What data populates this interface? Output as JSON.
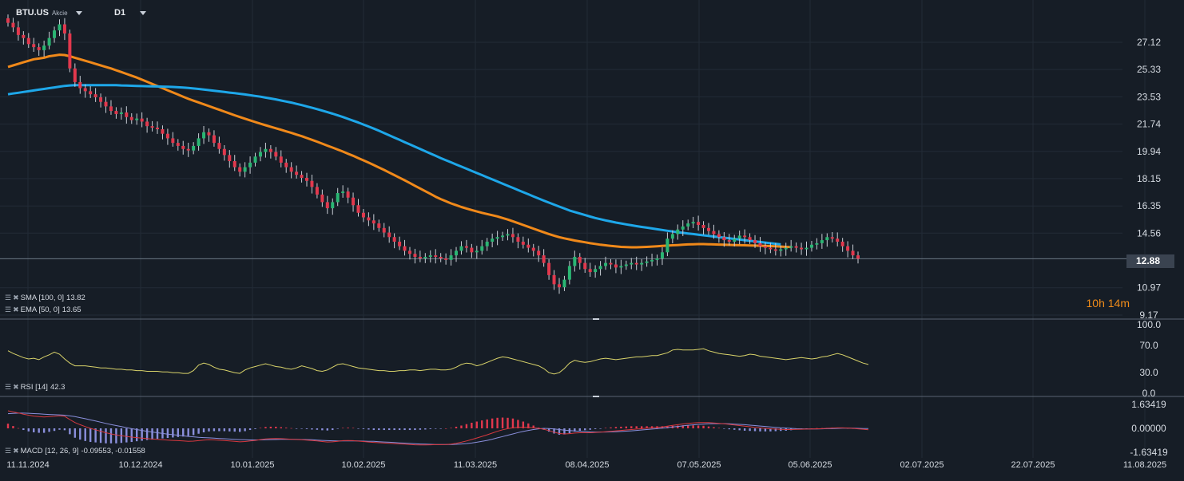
{
  "header": {
    "symbol": "BTU.US",
    "asset_type": "Akcie",
    "timeframe": "D1"
  },
  "indicators": {
    "sma": {
      "label": "SMA [100, 0]",
      "value": "13.82",
      "color": "#1ea7e9"
    },
    "ema": {
      "label": "EMA [50, 0]",
      "value": "13.65",
      "color": "#f0891a"
    },
    "rsi": {
      "label": "RSI [14]",
      "value": "42.3",
      "color": "#d9d36a"
    },
    "macd": {
      "label": "MACD [12, 26, 9]",
      "value": "-0.09553, -0.01558",
      "color_main": "#d7383f",
      "color_signal": "#8a8fdc"
    }
  },
  "countdown": "10h 14m",
  "chart_data": [
    {
      "type": "candlestick",
      "panel": "price",
      "x_ticks": [
        "11.11.2024",
        "10.12.2024",
        "10.01.2025",
        "10.02.2025",
        "11.03.2025",
        "08.04.2025",
        "07.05.2025",
        "05.06.2025",
        "02.07.2025",
        "22.07.2025",
        "11.08.2025"
      ],
      "y_ticks": [
        "27.12",
        "25.33",
        "23.53",
        "21.74",
        "19.94",
        "18.15",
        "16.35",
        "14.56",
        "12.88",
        "10.97",
        "9.17"
      ],
      "ylim": [
        9.17,
        28.9
      ],
      "current_price": "12.88",
      "close": [
        28.4,
        28.1,
        27.6,
        27.4,
        27.0,
        26.8,
        26.6,
        26.9,
        27.4,
        27.9,
        28.3,
        27.7,
        25.4,
        24.5,
        24.1,
        23.9,
        23.7,
        23.5,
        23.2,
        22.9,
        22.6,
        22.4,
        22.5,
        22.2,
        22.0,
        22.1,
        21.9,
        21.6,
        21.5,
        21.4,
        21.1,
        20.8,
        20.5,
        20.3,
        20.1,
        20.0,
        20.3,
        20.8,
        21.2,
        21.0,
        20.5,
        20.1,
        19.7,
        19.3,
        18.9,
        18.6,
        18.9,
        19.2,
        19.6,
        19.9,
        20.1,
        19.9,
        19.6,
        19.2,
        18.9,
        18.6,
        18.4,
        18.2,
        18.0,
        17.6,
        17.1,
        16.6,
        16.2,
        16.6,
        17.2,
        17.3,
        16.9,
        16.4,
        15.9,
        15.6,
        15.4,
        15.2,
        14.9,
        14.6,
        14.3,
        14.0,
        13.7,
        13.4,
        13.2,
        13.0,
        12.9,
        13.0,
        13.1,
        13.0,
        12.9,
        12.8,
        13.1,
        13.4,
        13.7,
        13.6,
        13.3,
        13.4,
        13.7,
        14.0,
        14.2,
        14.3,
        14.4,
        14.5,
        14.3,
        14.0,
        13.8,
        13.6,
        13.4,
        13.1,
        12.6,
        11.8,
        11.2,
        11.0,
        11.5,
        12.4,
        13.0,
        12.6,
        12.2,
        12.0,
        12.2,
        12.4,
        12.6,
        12.5,
        12.3,
        12.4,
        12.5,
        12.6,
        12.5,
        12.6,
        12.7,
        12.8,
        12.9,
        13.3,
        14.2,
        14.5,
        14.8,
        15.0,
        15.2,
        15.3,
        15.1,
        14.9,
        14.7,
        14.5,
        14.3,
        14.1,
        14.0,
        14.2,
        14.4,
        14.3,
        14.1,
        13.9,
        13.7,
        13.6,
        13.5,
        13.4,
        13.5,
        13.6,
        13.7,
        13.6,
        13.5,
        13.6,
        13.8,
        13.9,
        14.1,
        14.3,
        14.2,
        14.0,
        13.7,
        13.4,
        13.1,
        12.88
      ],
      "sma_100": [
        23.7,
        23.75,
        23.8,
        23.85,
        23.9,
        23.95,
        24.0,
        24.05,
        24.1,
        24.15,
        24.2,
        24.25,
        24.28,
        24.3,
        24.3,
        24.3,
        24.3,
        24.3,
        24.3,
        24.3,
        24.3,
        24.3,
        24.28,
        24.27,
        24.26,
        24.25,
        24.24,
        24.23,
        24.22,
        24.21,
        24.2,
        24.19,
        24.18,
        24.16,
        24.14,
        24.11,
        24.08,
        24.05,
        24.01,
        23.97,
        23.93,
        23.89,
        23.85,
        23.81,
        23.77,
        23.73,
        23.69,
        23.64,
        23.59,
        23.54,
        23.48,
        23.42,
        23.36,
        23.29,
        23.22,
        23.15,
        23.07,
        22.99,
        22.9,
        22.81,
        22.72,
        22.62,
        22.52,
        22.42,
        22.31,
        22.2,
        22.08,
        21.96,
        21.84,
        21.71,
        21.58,
        21.44,
        21.3,
        21.15,
        21.0,
        20.85,
        20.7,
        20.55,
        20.4,
        20.25,
        20.1,
        19.95,
        19.8,
        19.65,
        19.5,
        19.36,
        19.22,
        19.08,
        18.94,
        18.8,
        18.66,
        18.52,
        18.38,
        18.24,
        18.1,
        17.96,
        17.82,
        17.68,
        17.54,
        17.4,
        17.26,
        17.12,
        16.98,
        16.84,
        16.7,
        16.57,
        16.44,
        16.31,
        16.18,
        16.05,
        15.95,
        15.85,
        15.75,
        15.65,
        15.56,
        15.48,
        15.4,
        15.33,
        15.26,
        15.2,
        15.14,
        15.08,
        15.02,
        14.97,
        14.92,
        14.87,
        14.82,
        14.77,
        14.72,
        14.67,
        14.62,
        14.58,
        14.54,
        14.5,
        14.46,
        14.42,
        14.38,
        14.34,
        14.3,
        14.26,
        14.22,
        14.18,
        14.14,
        14.1,
        14.06,
        14.02,
        13.98,
        13.94,
        13.9,
        13.86,
        13.82
      ],
      "ema_50": [
        25.5,
        25.6,
        25.7,
        25.8,
        25.9,
        26.0,
        26.05,
        26.1,
        26.2,
        26.25,
        26.3,
        26.28,
        26.2,
        26.1,
        26.0,
        25.9,
        25.8,
        25.7,
        25.6,
        25.5,
        25.4,
        25.28,
        25.16,
        25.04,
        24.92,
        24.8,
        24.66,
        24.52,
        24.38,
        24.24,
        24.1,
        23.96,
        23.82,
        23.68,
        23.54,
        23.4,
        23.28,
        23.16,
        23.04,
        22.92,
        22.8,
        22.68,
        22.56,
        22.44,
        22.32,
        22.2,
        22.09,
        21.98,
        21.87,
        21.76,
        21.66,
        21.56,
        21.46,
        21.36,
        21.26,
        21.16,
        21.05,
        20.94,
        20.82,
        20.7,
        20.58,
        20.45,
        20.32,
        20.19,
        20.06,
        19.93,
        19.79,
        19.65,
        19.5,
        19.35,
        19.2,
        19.04,
        18.88,
        18.72,
        18.55,
        18.38,
        18.21,
        18.04,
        17.86,
        17.68,
        17.5,
        17.32,
        17.14,
        16.96,
        16.8,
        16.66,
        16.52,
        16.4,
        16.28,
        16.18,
        16.08,
        15.99,
        15.9,
        15.82,
        15.74,
        15.66,
        15.56,
        15.46,
        15.34,
        15.22,
        15.1,
        14.98,
        14.86,
        14.74,
        14.62,
        14.5,
        14.4,
        14.3,
        14.22,
        14.15,
        14.08,
        14.02,
        13.96,
        13.9,
        13.85,
        13.8,
        13.76,
        13.72,
        13.69,
        13.66,
        13.64,
        13.63,
        13.63,
        13.64,
        13.66,
        13.68,
        13.7,
        13.72,
        13.74,
        13.76,
        13.78,
        13.8,
        13.82,
        13.83,
        13.84,
        13.84,
        13.83,
        13.82,
        13.81,
        13.8,
        13.79,
        13.78,
        13.77,
        13.76,
        13.75,
        13.74,
        13.73,
        13.72,
        13.71,
        13.7,
        13.68,
        13.66,
        13.65
      ]
    },
    {
      "type": "line",
      "panel": "rsi",
      "name": "RSI [14]",
      "y_ticks": [
        "100.0",
        "70.0",
        "30.0",
        "0.0"
      ],
      "ylim": [
        0,
        100
      ],
      "values": [
        62,
        58,
        55,
        52,
        50,
        51,
        49,
        53,
        56,
        60,
        57,
        50,
        44,
        40,
        40,
        40,
        39,
        38,
        37,
        37,
        36,
        35,
        35,
        34,
        34,
        33,
        33,
        32,
        32,
        32,
        31,
        31,
        30,
        30,
        29,
        29,
        33,
        41,
        44,
        42,
        38,
        35,
        34,
        32,
        30,
        29,
        34,
        37,
        39,
        41,
        43,
        41,
        39,
        38,
        36,
        35,
        37,
        40,
        38,
        36,
        33,
        32,
        34,
        38,
        42,
        43,
        41,
        39,
        37,
        36,
        35,
        34,
        33,
        33,
        32,
        32,
        33,
        33,
        34,
        34,
        33,
        34,
        35,
        35,
        34,
        34,
        35,
        38,
        42,
        44,
        43,
        40,
        42,
        45,
        48,
        51,
        53,
        52,
        50,
        48,
        46,
        44,
        42,
        40,
        36,
        30,
        28,
        30,
        36,
        44,
        48,
        46,
        45,
        46,
        48,
        50,
        51,
        50,
        49,
        50,
        51,
        52,
        53,
        53,
        54,
        55,
        55,
        57,
        59,
        63,
        64,
        63,
        63,
        63,
        64,
        65,
        62,
        60,
        58,
        57,
        56,
        55,
        54,
        55,
        57,
        56,
        54,
        53,
        52,
        51,
        50,
        49,
        50,
        51,
        52,
        51,
        50,
        51,
        53,
        54,
        56,
        58,
        56,
        53,
        50,
        47,
        44,
        42
      ]
    },
    {
      "type": "bar+line",
      "panel": "macd",
      "name": "MACD [12, 26, 9]",
      "y_ticks": [
        "1.63419",
        "0.00000",
        "-1.63419"
      ],
      "ylim": [
        -1.63419,
        1.63419
      ],
      "macd": [
        1.2,
        1.12,
        1.05,
        0.97,
        0.9,
        0.84,
        0.8,
        0.78,
        0.8,
        0.82,
        0.86,
        0.82,
        0.6,
        0.4,
        0.25,
        0.12,
        0.0,
        -0.1,
        -0.2,
        -0.3,
        -0.38,
        -0.45,
        -0.5,
        -0.55,
        -0.6,
        -0.63,
        -0.67,
        -0.7,
        -0.73,
        -0.75,
        -0.78,
        -0.8,
        -0.82,
        -0.84,
        -0.86,
        -0.88,
        -0.87,
        -0.84,
        -0.8,
        -0.78,
        -0.79,
        -0.81,
        -0.83,
        -0.86,
        -0.89,
        -0.92,
        -0.9,
        -0.86,
        -0.82,
        -0.77,
        -0.72,
        -0.7,
        -0.69,
        -0.7,
        -0.72,
        -0.74,
        -0.76,
        -0.78,
        -0.8,
        -0.83,
        -0.86,
        -0.9,
        -0.93,
        -0.92,
        -0.88,
        -0.84,
        -0.83,
        -0.84,
        -0.87,
        -0.9,
        -0.93,
        -0.96,
        -0.98,
        -1.0,
        -1.02,
        -1.04,
        -1.06,
        -1.08,
        -1.1,
        -1.12,
        -1.13,
        -1.13,
        -1.12,
        -1.11,
        -1.11,
        -1.1,
        -1.08,
        -1.02,
        -0.95,
        -0.86,
        -0.76,
        -0.66,
        -0.55,
        -0.44,
        -0.32,
        -0.2,
        -0.1,
        -0.02,
        0.04,
        0.07,
        0.08,
        0.07,
        0.04,
        0.0,
        -0.06,
        -0.15,
        -0.26,
        -0.35,
        -0.38,
        -0.36,
        -0.32,
        -0.3,
        -0.3,
        -0.3,
        -0.28,
        -0.26,
        -0.23,
        -0.2,
        -0.17,
        -0.14,
        -0.11,
        -0.08,
        -0.05,
        -0.02,
        0.01,
        0.04,
        0.07,
        0.1,
        0.15,
        0.2,
        0.25,
        0.3,
        0.34,
        0.37,
        0.39,
        0.4,
        0.39,
        0.37,
        0.34,
        0.31,
        0.27,
        0.23,
        0.19,
        0.15,
        0.11,
        0.07,
        0.03,
        0.0,
        -0.03,
        -0.05,
        -0.07,
        -0.08,
        -0.08,
        -0.07,
        -0.06,
        -0.05,
        -0.04,
        -0.03,
        -0.02,
        0.0,
        0.02,
        0.03,
        0.03,
        0.02,
        0.0,
        -0.03,
        -0.06,
        -0.09553
      ],
      "signal": [
        1.0,
        1.02,
        1.04,
        1.04,
        1.03,
        1.01,
        0.99,
        0.97,
        0.95,
        0.93,
        0.92,
        0.9,
        0.85,
        0.8,
        0.73,
        0.66,
        0.58,
        0.5,
        0.42,
        0.34,
        0.26,
        0.19,
        0.12,
        0.05,
        -0.02,
        -0.08,
        -0.14,
        -0.2,
        -0.25,
        -0.3,
        -0.35,
        -0.39,
        -0.43,
        -0.47,
        -0.51,
        -0.55,
        -0.58,
        -0.61,
        -0.63,
        -0.65,
        -0.67,
        -0.69,
        -0.71,
        -0.73,
        -0.75,
        -0.77,
        -0.78,
        -0.79,
        -0.79,
        -0.79,
        -0.78,
        -0.77,
        -0.76,
        -0.75,
        -0.75,
        -0.75,
        -0.75,
        -0.76,
        -0.77,
        -0.78,
        -0.8,
        -0.82,
        -0.84,
        -0.85,
        -0.86,
        -0.86,
        -0.86,
        -0.86,
        -0.86,
        -0.87,
        -0.88,
        -0.89,
        -0.91,
        -0.93,
        -0.95,
        -0.97,
        -0.99,
        -1.01,
        -1.03,
        -1.05,
        -1.07,
        -1.08,
        -1.09,
        -1.1,
        -1.1,
        -1.1,
        -1.1,
        -1.09,
        -1.07,
        -1.04,
        -1.0,
        -0.95,
        -0.89,
        -0.82,
        -0.74,
        -0.65,
        -0.56,
        -0.47,
        -0.38,
        -0.29,
        -0.21,
        -0.14,
        -0.08,
        -0.03,
        0.0,
        -0.01,
        -0.04,
        -0.08,
        -0.12,
        -0.15,
        -0.18,
        -0.2,
        -0.22,
        -0.24,
        -0.25,
        -0.25,
        -0.25,
        -0.24,
        -0.23,
        -0.21,
        -0.19,
        -0.17,
        -0.14,
        -0.11,
        -0.08,
        -0.05,
        -0.02,
        0.01,
        0.05,
        0.09,
        0.13,
        0.17,
        0.21,
        0.24,
        0.27,
        0.29,
        0.31,
        0.32,
        0.32,
        0.32,
        0.31,
        0.29,
        0.27,
        0.25,
        0.22,
        0.19,
        0.16,
        0.13,
        0.1,
        0.07,
        0.04,
        0.02,
        0.0,
        -0.02,
        -0.03,
        -0.04,
        -0.04,
        -0.04,
        -0.03,
        -0.02,
        -0.01,
        0.0,
        0.01,
        0.01,
        0.01,
        0.0,
        -0.01,
        -0.01558
      ]
    }
  ]
}
